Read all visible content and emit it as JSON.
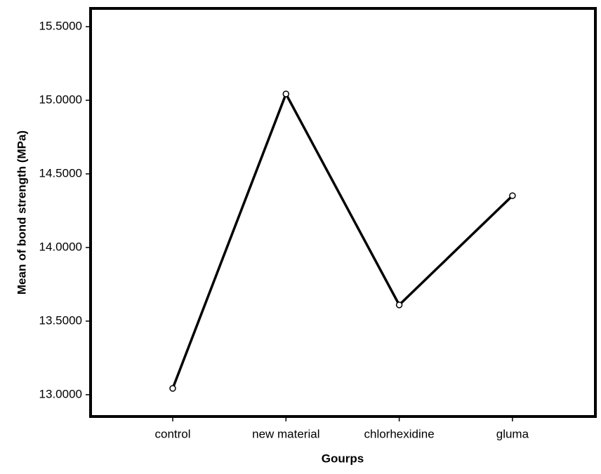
{
  "chart_data": {
    "type": "line",
    "x_label": "Gourps",
    "y_label": "Mean of bond strength (MPa)",
    "categories": [
      "control",
      "new material",
      "chlorhexidine",
      "gluma"
    ],
    "values": [
      13.043,
      15.043,
      13.61,
      14.352
    ],
    "color": "#000000",
    "ylim": [
      12.852,
      15.624
    ],
    "yticks": [
      {
        "value": 13.0,
        "label": "13.0000"
      },
      {
        "value": 13.5,
        "label": "13.5000"
      },
      {
        "value": 14.0,
        "label": "14.0000"
      },
      {
        "value": 14.5,
        "label": "14.5000"
      },
      {
        "value": 15.0,
        "label": "15.0000"
      },
      {
        "value": 15.5,
        "label": "15.5000"
      }
    ]
  }
}
